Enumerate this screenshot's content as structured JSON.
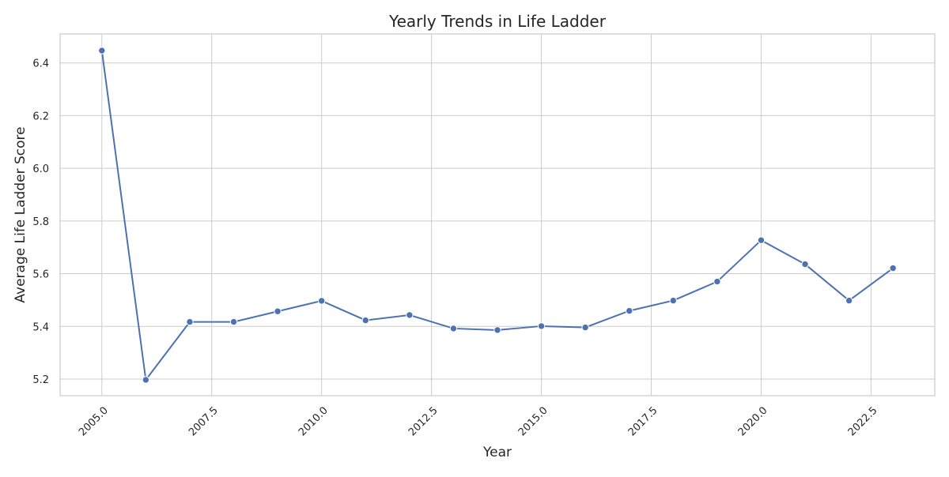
{
  "chart_data": {
    "type": "line",
    "title": "Yearly Trends in Life Ladder",
    "xlabel": "Year",
    "ylabel": "Average Life Ladder Score",
    "xlim": [
      2004.05,
      2023.95
    ],
    "ylim": [
      5.137,
      6.51
    ],
    "xticks": [
      2005.0,
      2007.5,
      2010.0,
      2012.5,
      2015.0,
      2017.5,
      2020.0,
      2022.5
    ],
    "xtick_labels": [
      "2005.0",
      "2007.5",
      "2010.0",
      "2012.5",
      "2015.0",
      "2017.5",
      "2020.0",
      "2022.5"
    ],
    "yticks": [
      5.2,
      5.4,
      5.6,
      5.8,
      6.0,
      6.2,
      6.4
    ],
    "ytick_labels": [
      "5.2",
      "5.4",
      "5.6",
      "5.8",
      "6.0",
      "6.2",
      "6.4"
    ],
    "grid": true,
    "colors": {
      "series": "#4c72b0",
      "grid": "#cccccc"
    },
    "series": [
      {
        "x": [
          2005,
          2006,
          2007,
          2008,
          2009,
          2010,
          2011,
          2012,
          2013,
          2014,
          2015,
          2016,
          2017,
          2018,
          2019,
          2020,
          2021,
          2022,
          2023
        ],
        "values": [
          6.447,
          5.197,
          5.417,
          5.417,
          5.457,
          5.497,
          5.423,
          5.443,
          5.392,
          5.386,
          5.401,
          5.396,
          5.459,
          5.498,
          5.57,
          5.727,
          5.636,
          5.498,
          5.621
        ]
      }
    ]
  }
}
